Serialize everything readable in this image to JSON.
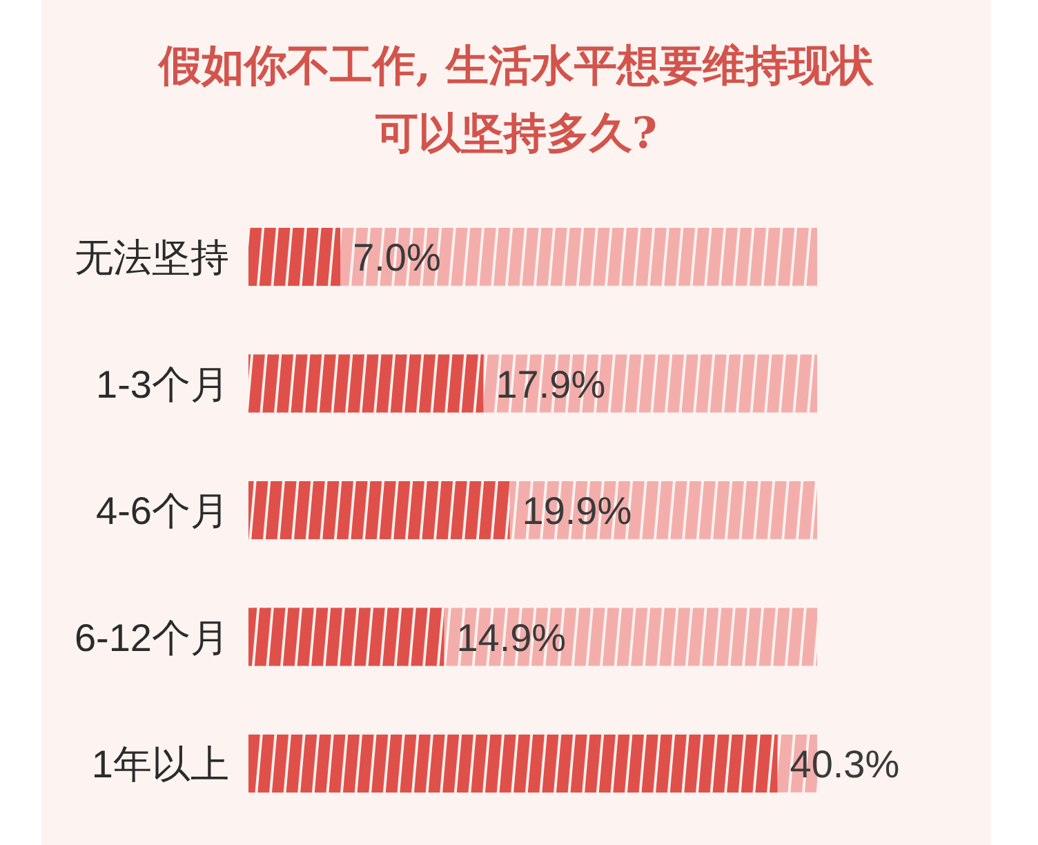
{
  "chart_data": {
    "type": "bar",
    "orientation": "horizontal",
    "title": "假如你不工作, 生活水平想要维持现状可以坚持多久?",
    "categories": [
      "无法坚持",
      "1-3个月",
      "4-6个月",
      "6-12个月",
      "1年以上"
    ],
    "values": [
      7.0,
      17.9,
      19.9,
      14.9,
      40.3
    ],
    "value_labels": [
      "7.0%",
      "17.9%",
      "19.9%",
      "14.9%",
      "40.3%"
    ],
    "color": "#e0504a"
  }
}
